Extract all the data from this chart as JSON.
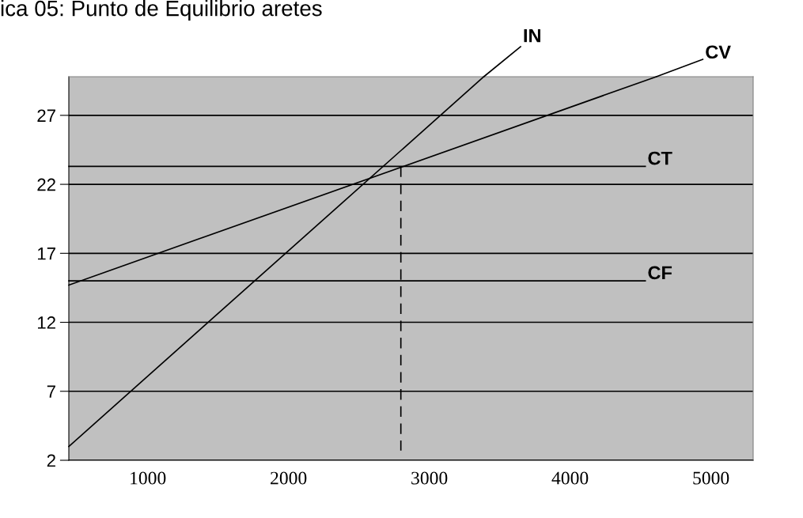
{
  "chart_data": {
    "type": "line",
    "title": "ica 05: Punto de Equilibrio aretes",
    "xlim": [
      440,
      5300
    ],
    "xticks": [
      1000,
      2000,
      3000,
      4000,
      5000
    ],
    "ylim": [
      2,
      29.8
    ],
    "yticks": [
      2,
      7,
      12,
      17,
      22,
      27
    ],
    "grid": "y",
    "legend": false,
    "series": [
      {
        "name": "IN",
        "color": "#000000",
        "x": [
          440,
          3387
        ],
        "values": [
          3.0,
          29.8
        ]
      },
      {
        "name": "CV",
        "color": "#000000",
        "x": [
          440,
          4612
        ],
        "values": [
          14.7,
          29.8
        ]
      },
      {
        "name": "CT",
        "color": "#000000",
        "x": [
          440,
          4534
        ],
        "values": [
          23.3,
          23.3
        ]
      },
      {
        "name": "CF",
        "color": "#000000",
        "x": [
          440,
          4534
        ],
        "values": [
          15.0,
          15.0
        ]
      },
      {
        "color": "#000000",
        "line_style": "dashed",
        "x": [
          2798,
          2798
        ],
        "values": [
          23.3,
          2.7
        ]
      }
    ]
  }
}
